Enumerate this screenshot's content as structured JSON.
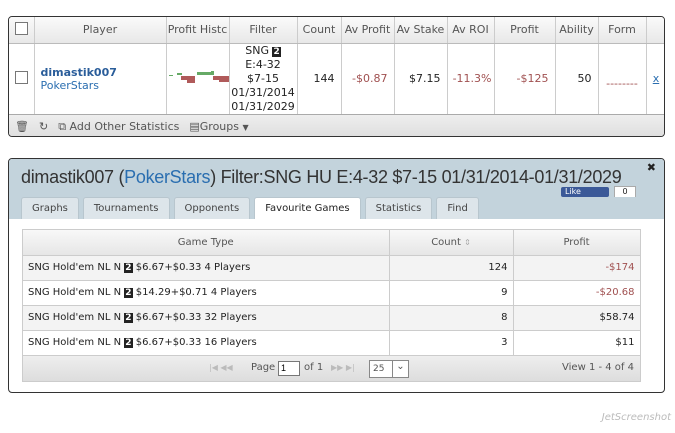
{
  "stats_table": {
    "columns": [
      "",
      "Player",
      "Profit Histc",
      "Filter",
      "Count",
      "Av Profit",
      "Av Stake",
      "Av ROI",
      "Profit",
      "Ability",
      "Form",
      ""
    ],
    "row": {
      "player_name": "dimastik007",
      "site": "PokerStars",
      "filter_lines": [
        "SNG",
        "E:4-32",
        "$7-15",
        "01/31/2014",
        "01/31/2029"
      ],
      "filter_badge": "2",
      "count": "144",
      "av_profit": "-$0.87",
      "av_stake": "$7.15",
      "av_roi": "-11.3%",
      "profit": "-$125",
      "ability": "50",
      "form": "--------",
      "remove": "x"
    },
    "footer": {
      "add_stats": "Add Other Statistics",
      "groups": "Groups"
    }
  },
  "detail_panel": {
    "title_player": "dimastik007",
    "title_site": "PokerStars",
    "title_filter": "Filter:SNG HU E:4-32 $7-15 01/31/2014-01/31/2029",
    "like_label": "Like",
    "like_count": "0",
    "tabs": [
      "Graphs",
      "Tournaments",
      "Opponents",
      "Favourite Games",
      "Statistics",
      "Find"
    ],
    "active_tab": "Favourite Games",
    "grid": {
      "headers": [
        "Game Type",
        "Count",
        "Profit"
      ],
      "rows": [
        {
          "game_prefix": "SNG Hold'em NL N",
          "badge": "2",
          "game_suffix": "$6.67+$0.33 4 Players",
          "count": "124",
          "profit": "-$174"
        },
        {
          "game_prefix": "SNG Hold'em NL N",
          "badge": "2",
          "game_suffix": "$14.29+$0.71 4 Players",
          "count": "9",
          "profit": "-$20.68"
        },
        {
          "game_prefix": "SNG Hold'em NL N",
          "badge": "2",
          "game_suffix": "$6.67+$0.33 32 Players",
          "count": "8",
          "profit": "$58.74"
        },
        {
          "game_prefix": "SNG Hold'em NL N",
          "badge": "2",
          "game_suffix": "$6.67+$0.33 16 Players",
          "count": "3",
          "profit": "$11"
        }
      ],
      "pager": {
        "page_label": "Page",
        "page": "1",
        "of_label": "of 1",
        "page_size": "25",
        "view_text": "View 1 - 4 of 4"
      }
    }
  },
  "colors": {
    "negative": "#a05050",
    "link": "#2a6eb0",
    "titlebar": "#c3d3dc"
  },
  "watermark": "JetScreenshot"
}
